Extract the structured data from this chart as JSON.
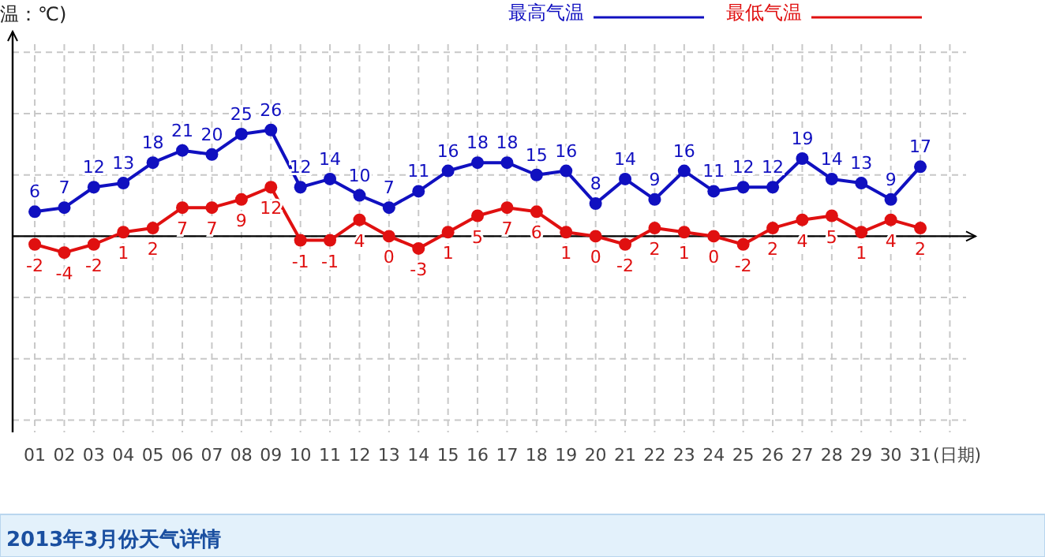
{
  "chart_data": {
    "type": "line",
    "ylabel": "温：℃)",
    "xlabel": "(日期)",
    "categories": [
      "01",
      "02",
      "03",
      "04",
      "05",
      "06",
      "07",
      "08",
      "09",
      "10",
      "11",
      "12",
      "13",
      "14",
      "15",
      "16",
      "17",
      "18",
      "19",
      "20",
      "21",
      "22",
      "23",
      "24",
      "25",
      "26",
      "27",
      "28",
      "29",
      "30",
      "31"
    ],
    "series": [
      {
        "name": "最高气温",
        "color": "#1010c0",
        "values": [
          6,
          7,
          12,
          13,
          18,
          21,
          20,
          25,
          26,
          12,
          14,
          10,
          7,
          11,
          16,
          18,
          18,
          15,
          16,
          8,
          14,
          9,
          16,
          11,
          12,
          12,
          19,
          14,
          13,
          9,
          17
        ]
      },
      {
        "name": "最低气温",
        "color": "#e01010",
        "values": [
          -2,
          -4,
          -2,
          1,
          2,
          7,
          7,
          9,
          12,
          -1,
          -1,
          4,
          0,
          -3,
          1,
          5,
          7,
          6,
          1,
          0,
          -2,
          2,
          1,
          0,
          -2,
          2,
          4,
          5,
          1,
          4,
          2
        ]
      }
    ],
    "ylim": [
      -48,
      47
    ],
    "yticks": [
      {
        "value": -45,
        "label": null
      },
      {
        "value": -30,
        "label": null
      },
      {
        "value": -15,
        "label": null
      },
      {
        "value": 0,
        "label": null
      },
      {
        "value": 15,
        "label": null
      },
      {
        "value": 30,
        "label": null
      },
      {
        "value": 45,
        "label": null
      }
    ],
    "tick_labels": "x",
    "data_labels": true,
    "grid": true,
    "legend": "top",
    "marker": "circle",
    "line_style": "solid",
    "annotations": [
      "2013年3月份天气详情"
    ]
  }
}
